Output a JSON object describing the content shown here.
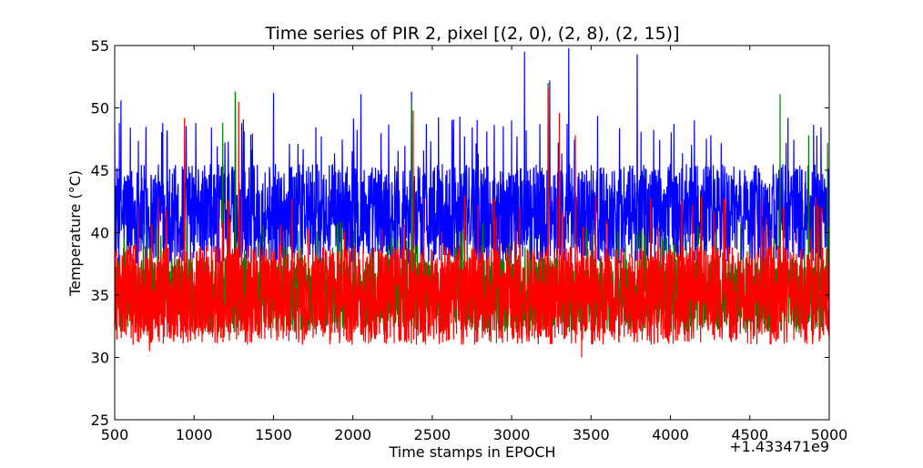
{
  "chart_data": {
    "type": "line",
    "title": "Time series of PIR 2, pixel [(2, 0), (2, 8), (2, 15)]",
    "xlabel": "Time stamps in EPOCH",
    "ylabel": "Temperature (°C)",
    "x_offset_label": "+1.433471e9",
    "xlim": [
      500,
      5000
    ],
    "ylim": [
      25,
      55
    ],
    "x_ticks": [
      500,
      1000,
      1500,
      2000,
      2500,
      3000,
      3500,
      4000,
      4500,
      5000
    ],
    "y_ticks": [
      25,
      30,
      35,
      40,
      45,
      50,
      55
    ],
    "grid": false,
    "legend": "none",
    "series": [
      {
        "color": "#0000ff",
        "mean": 41.5,
        "noise_range": [
          37.5,
          45.5
        ],
        "spikes": [
          [
            540,
            50.6
          ],
          [
            1260,
            51.3
          ],
          [
            1500,
            51.2
          ],
          [
            2050,
            51.1
          ],
          [
            2370,
            51.3
          ],
          [
            3080,
            54.5
          ],
          [
            3240,
            52.2
          ],
          [
            3360,
            54.8
          ],
          [
            3790,
            54.3
          ],
          [
            3000,
            49.0
          ],
          [
            4150,
            49.0
          ]
        ]
      },
      {
        "color": "#008000",
        "mean": 35.0,
        "noise_range": [
          32.0,
          38.0
        ],
        "spikes": [
          [
            1180,
            48.8
          ],
          [
            1260,
            51.3
          ],
          [
            2370,
            50.5
          ],
          [
            3230,
            52.0
          ],
          [
            4690,
            51.1
          ],
          [
            4870,
            47.8
          ],
          [
            4990,
            47.2
          ]
        ]
      },
      {
        "color": "#ff0000",
        "mean": 35.0,
        "noise_range": [
          31.0,
          39.0
        ],
        "spikes": [
          [
            940,
            49.2
          ],
          [
            1280,
            50.5
          ],
          [
            2380,
            49.8
          ],
          [
            3230,
            51.6
          ],
          [
            3300,
            49.6
          ],
          [
            3400,
            47.8
          ],
          [
            720,
            30.5
          ],
          [
            3440,
            30.0
          ]
        ]
      }
    ]
  }
}
